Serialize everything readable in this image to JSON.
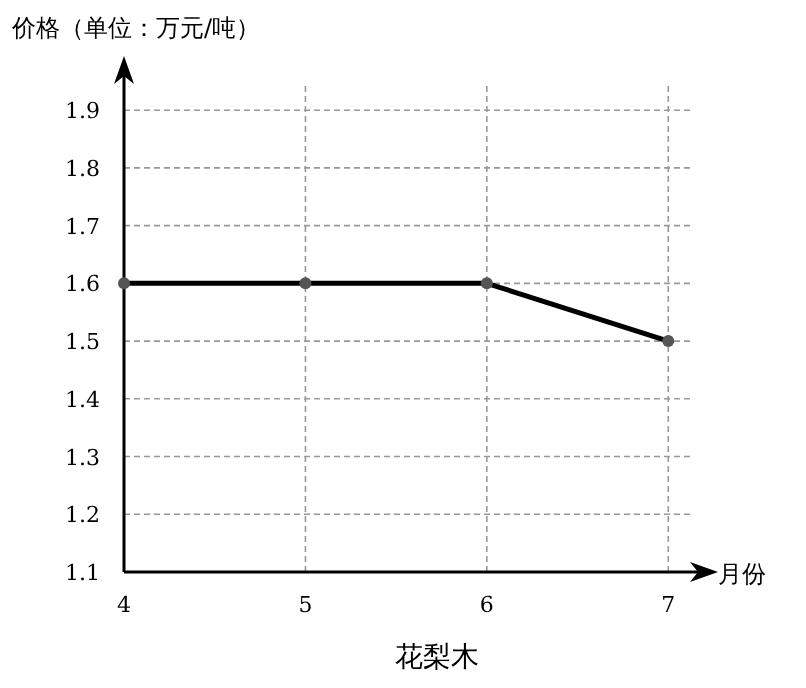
{
  "chart_data": {
    "type": "line",
    "title": "花梨木",
    "xlabel": "月份",
    "ylabel": "价格（单位：万元/吨）",
    "x": [
      4,
      5,
      6,
      7
    ],
    "series": [
      {
        "color": "#000000",
        "values": [
          1.6,
          1.6,
          1.6,
          1.5
        ]
      }
    ],
    "xlim": [
      4,
      7.23
    ],
    "xticks": [
      4,
      5,
      6,
      7
    ],
    "ylim": [
      1.1,
      1.98
    ],
    "yticks": [
      1.1,
      1.2,
      1.3,
      1.4,
      1.5,
      1.6,
      1.7,
      1.8,
      1.9
    ],
    "grid": true,
    "marker": "circle",
    "line_style": "solid"
  }
}
